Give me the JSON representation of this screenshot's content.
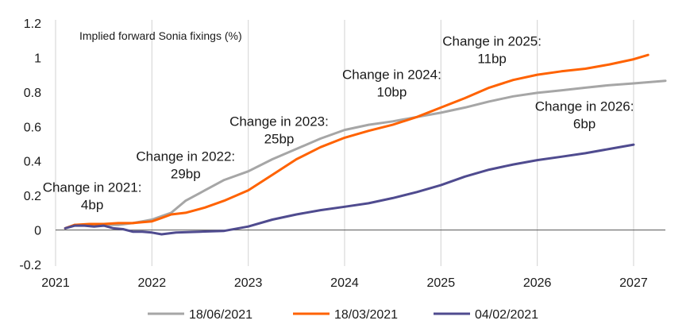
{
  "chart_data": {
    "type": "line",
    "title": "Implied forward Sonia fixings (%)",
    "xlabel": "",
    "ylabel": "",
    "xlim": [
      2021,
      2027.33
    ],
    "ylim": [
      -0.2,
      1.2
    ],
    "x_ticks": [
      "2021",
      "2022",
      "2023",
      "2024",
      "2025",
      "2026",
      "2027"
    ],
    "y_ticks": [
      "-0.2",
      "0",
      "0.2",
      "0.4",
      "0.6",
      "0.8",
      "1",
      "1.2"
    ],
    "grid": "vertical",
    "legend_position": "bottom",
    "series": [
      {
        "name": "18/06/2021",
        "color": "#a6a6a6",
        "points": [
          [
            2021.1,
            0.01
          ],
          [
            2021.2,
            0.03
          ],
          [
            2021.35,
            0.03
          ],
          [
            2021.5,
            0.03
          ],
          [
            2021.65,
            0.03
          ],
          [
            2021.8,
            0.04
          ],
          [
            2021.9,
            0.05
          ],
          [
            2022.0,
            0.06
          ],
          [
            2022.1,
            0.08
          ],
          [
            2022.2,
            0.1
          ],
          [
            2022.35,
            0.17
          ],
          [
            2022.55,
            0.23
          ],
          [
            2022.75,
            0.29
          ],
          [
            2023.0,
            0.34
          ],
          [
            2023.25,
            0.41
          ],
          [
            2023.5,
            0.47
          ],
          [
            2023.75,
            0.53
          ],
          [
            2024.0,
            0.58
          ],
          [
            2024.25,
            0.61
          ],
          [
            2024.5,
            0.63
          ],
          [
            2024.75,
            0.655
          ],
          [
            2025.0,
            0.68
          ],
          [
            2025.25,
            0.71
          ],
          [
            2025.5,
            0.745
          ],
          [
            2025.75,
            0.775
          ],
          [
            2026.0,
            0.795
          ],
          [
            2026.25,
            0.81
          ],
          [
            2026.5,
            0.825
          ],
          [
            2026.75,
            0.84
          ],
          [
            2027.0,
            0.85
          ],
          [
            2027.33,
            0.865
          ]
        ]
      },
      {
        "name": "18/03/2021",
        "color": "#ff6200",
        "points": [
          [
            2021.1,
            0.01
          ],
          [
            2021.2,
            0.03
          ],
          [
            2021.35,
            0.035
          ],
          [
            2021.5,
            0.035
          ],
          [
            2021.65,
            0.04
          ],
          [
            2021.8,
            0.04
          ],
          [
            2021.9,
            0.045
          ],
          [
            2022.0,
            0.05
          ],
          [
            2022.1,
            0.07
          ],
          [
            2022.2,
            0.09
          ],
          [
            2022.35,
            0.1
          ],
          [
            2022.55,
            0.13
          ],
          [
            2022.75,
            0.17
          ],
          [
            2023.0,
            0.23
          ],
          [
            2023.25,
            0.32
          ],
          [
            2023.5,
            0.41
          ],
          [
            2023.75,
            0.48
          ],
          [
            2024.0,
            0.535
          ],
          [
            2024.25,
            0.575
          ],
          [
            2024.5,
            0.61
          ],
          [
            2024.75,
            0.655
          ],
          [
            2025.0,
            0.71
          ],
          [
            2025.25,
            0.765
          ],
          [
            2025.5,
            0.825
          ],
          [
            2025.75,
            0.87
          ],
          [
            2026.0,
            0.9
          ],
          [
            2026.25,
            0.92
          ],
          [
            2026.5,
            0.935
          ],
          [
            2026.75,
            0.96
          ],
          [
            2027.0,
            0.99
          ],
          [
            2027.15,
            1.015
          ]
        ]
      },
      {
        "name": "04/02/2021",
        "color": "#4f4b8f",
        "points": [
          [
            2021.1,
            0.01
          ],
          [
            2021.2,
            0.025
          ],
          [
            2021.3,
            0.025
          ],
          [
            2021.4,
            0.02
          ],
          [
            2021.5,
            0.025
          ],
          [
            2021.6,
            0.01
          ],
          [
            2021.7,
            0.005
          ],
          [
            2021.8,
            -0.01
          ],
          [
            2021.9,
            -0.01
          ],
          [
            2022.0,
            -0.015
          ],
          [
            2022.1,
            -0.025
          ],
          [
            2022.25,
            -0.015
          ],
          [
            2022.5,
            -0.01
          ],
          [
            2022.75,
            -0.005
          ],
          [
            2023.0,
            0.02
          ],
          [
            2023.25,
            0.06
          ],
          [
            2023.5,
            0.09
          ],
          [
            2023.75,
            0.115
          ],
          [
            2024.0,
            0.135
          ],
          [
            2024.25,
            0.155
          ],
          [
            2024.5,
            0.185
          ],
          [
            2024.75,
            0.22
          ],
          [
            2025.0,
            0.26
          ],
          [
            2025.25,
            0.31
          ],
          [
            2025.5,
            0.35
          ],
          [
            2025.75,
            0.38
          ],
          [
            2026.0,
            0.405
          ],
          [
            2026.25,
            0.425
          ],
          [
            2026.5,
            0.445
          ],
          [
            2026.75,
            0.47
          ],
          [
            2027.0,
            0.495
          ]
        ]
      }
    ],
    "annotations": [
      {
        "lines": [
          "Change in 2021:",
          "4bp"
        ],
        "x": 2021.38,
        "y": 0.222
      },
      {
        "lines": [
          "Change in 2022:",
          "29bp"
        ],
        "x": 2022.35,
        "y": 0.4
      },
      {
        "lines": [
          "Change in 2023:",
          "25bp"
        ],
        "x": 2023.32,
        "y": 0.603
      },
      {
        "lines": [
          "Change in 2024:",
          "10bp"
        ],
        "x": 2024.49,
        "y": 0.876
      },
      {
        "lines": [
          "Change in 2025:",
          "11bp"
        ],
        "x": 2025.53,
        "y": 1.068
      },
      {
        "lines": [
          "Change in 2026:",
          "6bp"
        ],
        "x": 2026.49,
        "y": 0.691
      }
    ]
  }
}
